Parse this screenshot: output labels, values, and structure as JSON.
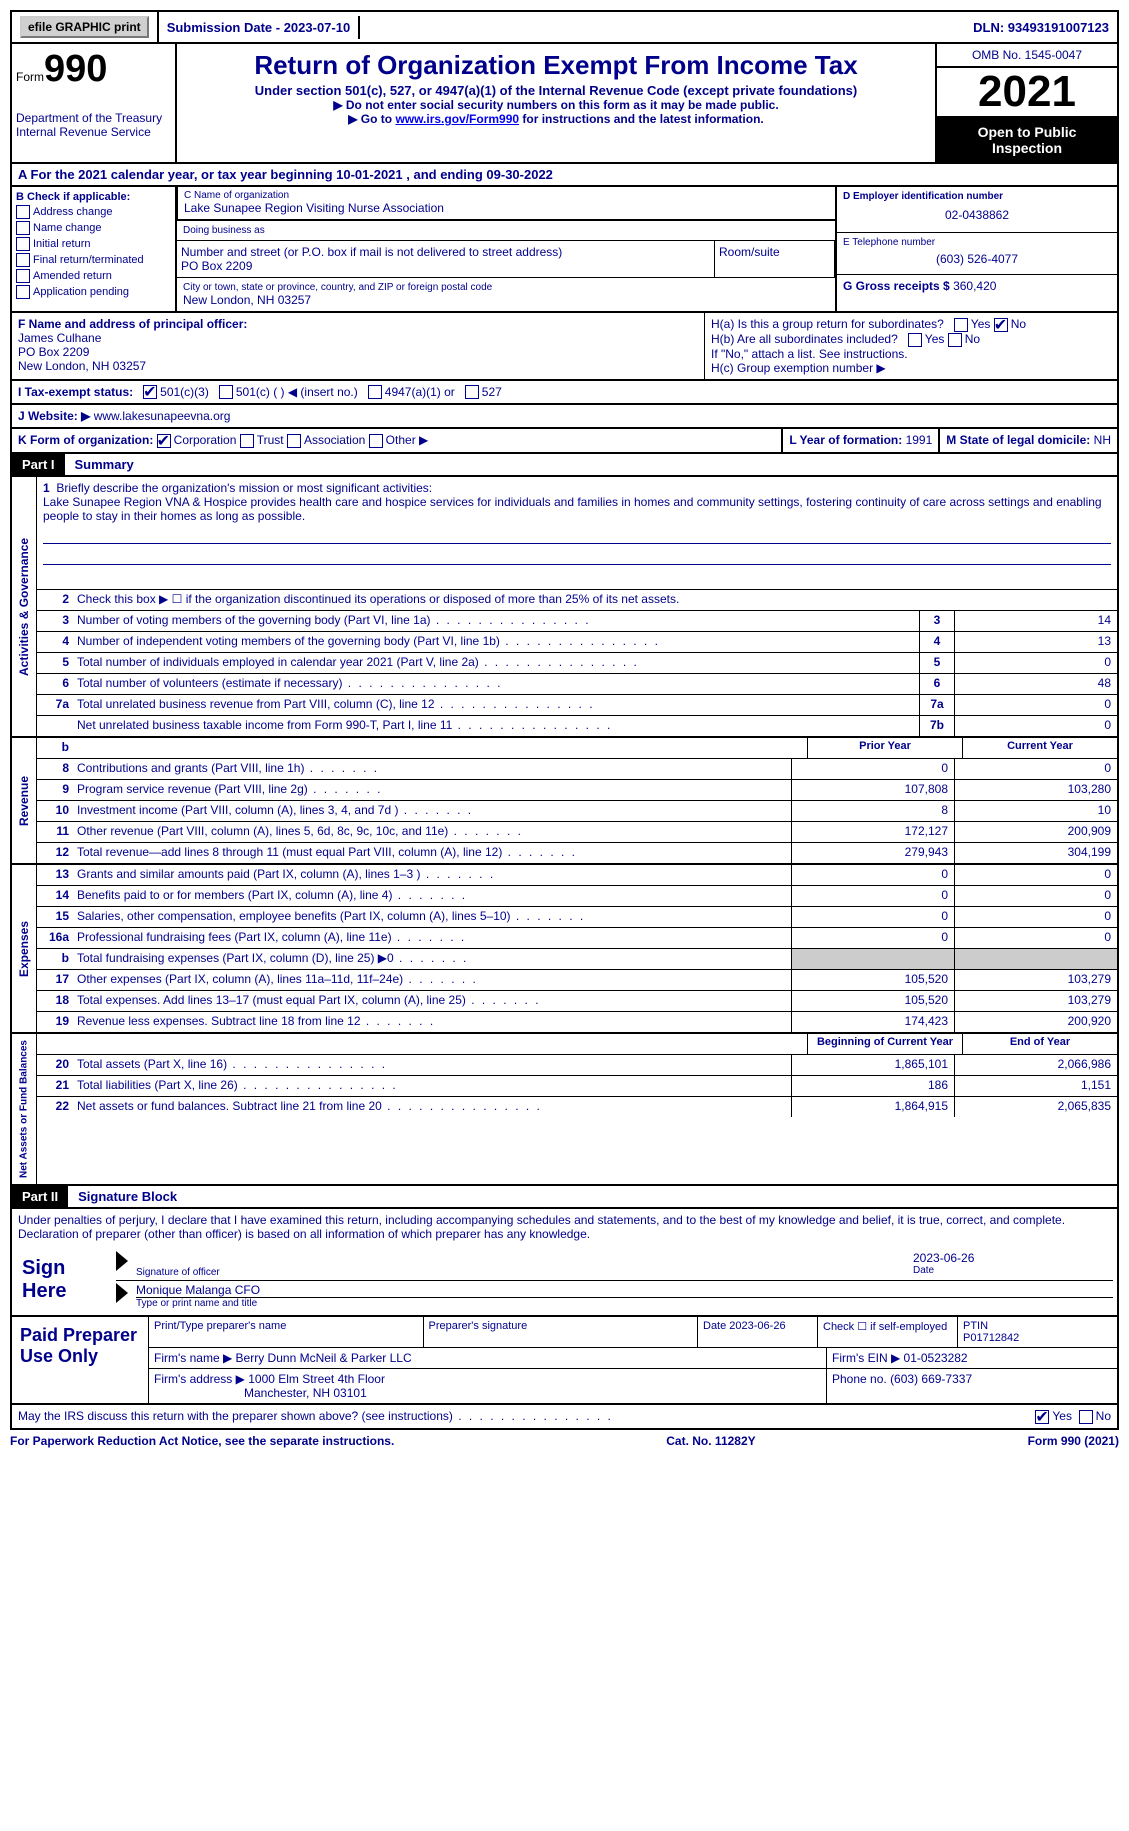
{
  "top_bar": {
    "efile_btn": "efile GRAPHIC print",
    "submission": "Submission Date - 2023-07-10",
    "dln": "DLN: 93493191007123"
  },
  "header": {
    "form_label": "Form",
    "form_num": "990",
    "dept": "Department of the Treasury Internal Revenue Service",
    "title": "Return of Organization Exempt From Income Tax",
    "subtitle": "Under section 501(c), 527, or 4947(a)(1) of the Internal Revenue Code (except private foundations)",
    "note1": "▶ Do not enter social security numbers on this form as it may be made public.",
    "note2_pre": "▶ Go to ",
    "note2_link": "www.irs.gov/Form990",
    "note2_post": " for instructions and the latest information.",
    "omb": "OMB No. 1545-0047",
    "year": "2021",
    "inspection": "Open to Public Inspection"
  },
  "row_a": "A For the 2021 calendar year, or tax year beginning 10-01-2021   , and ending 09-30-2022",
  "section_b": {
    "header": "B Check if applicable:",
    "options": [
      "Address change",
      "Name change",
      "Initial return",
      "Final return/terminated",
      "Amended return",
      "Application pending"
    ]
  },
  "section_c": {
    "name_label": "C Name of organization",
    "name": "Lake Sunapee Region Visiting Nurse Association",
    "dba_label": "Doing business as",
    "street_label": "Number and street (or P.O. box if mail is not delivered to street address)",
    "street": "PO Box 2209",
    "room_label": "Room/suite",
    "city_label": "City or town, state or province, country, and ZIP or foreign postal code",
    "city": "New London, NH  03257"
  },
  "section_d": {
    "ein_label": "D Employer identification number",
    "ein": "02-0438862",
    "tel_label": "E Telephone number",
    "tel": "(603) 526-4077",
    "gross_label": "G Gross receipts $",
    "gross": "360,420"
  },
  "officer": {
    "label": "F Name and address of principal officer:",
    "name": "James Culhane",
    "addr1": "PO Box 2209",
    "addr2": "New London, NH  03257"
  },
  "section_h": {
    "ha": "H(a)  Is this a group return for subordinates?",
    "hb": "H(b)  Are all subordinates included?",
    "hb_note": "If \"No,\" attach a list. See instructions.",
    "hc": "H(c)  Group exemption number ▶"
  },
  "tax_status": {
    "label": "I  Tax-exempt status:",
    "opt1": "501(c)(3)",
    "opt2": "501(c) (  ) ◀ (insert no.)",
    "opt3": "4947(a)(1) or",
    "opt4": "527"
  },
  "website": {
    "label": "J Website: ▶",
    "url": "www.lakesunapeevna.org"
  },
  "form_org": {
    "label": "K Form of organization:",
    "opts": [
      "Corporation",
      "Trust",
      "Association",
      "Other ▶"
    ]
  },
  "l_year": {
    "label": "L Year of formation:",
    "val": "1991"
  },
  "m_state": {
    "label": "M State of legal domicile:",
    "val": "NH"
  },
  "part1": {
    "header": "Part I",
    "title": "Summary",
    "mission_label": "Briefly describe the organization's mission or most significant activities:",
    "mission": "Lake Sunapee Region VNA & Hospice provides health care and hospice services for individuals and families in homes and community settings, fostering continuity of care across settings and enabling people to stay in their homes as long as possible.",
    "line2": "Check this box ▶ ☐ if the organization discontinued its operations or disposed of more than 25% of its net assets.",
    "vert_labels": [
      "Activities & Governance",
      "Revenue",
      "Expenses",
      "Net Assets or Fund Balances"
    ],
    "gov_rows": [
      {
        "n": "3",
        "d": "Number of voting members of the governing body (Part VI, line 1a)",
        "b": "3",
        "v": "14"
      },
      {
        "n": "4",
        "d": "Number of independent voting members of the governing body (Part VI, line 1b)",
        "b": "4",
        "v": "13"
      },
      {
        "n": "5",
        "d": "Total number of individuals employed in calendar year 2021 (Part V, line 2a)",
        "b": "5",
        "v": "0"
      },
      {
        "n": "6",
        "d": "Total number of volunteers (estimate if necessary)",
        "b": "6",
        "v": "48"
      },
      {
        "n": "7a",
        "d": "Total unrelated business revenue from Part VIII, column (C), line 12",
        "b": "7a",
        "v": "0"
      },
      {
        "n": "",
        "d": "Net unrelated business taxable income from Form 990-T, Part I, line 11",
        "b": "7b",
        "v": "0"
      }
    ],
    "col_headers": {
      "prior": "Prior Year",
      "current": "Current Year"
    },
    "rev_rows": [
      {
        "n": "8",
        "d": "Contributions and grants (Part VIII, line 1h)",
        "p": "0",
        "c": "0"
      },
      {
        "n": "9",
        "d": "Program service revenue (Part VIII, line 2g)",
        "p": "107,808",
        "c": "103,280"
      },
      {
        "n": "10",
        "d": "Investment income (Part VIII, column (A), lines 3, 4, and 7d )",
        "p": "8",
        "c": "10"
      },
      {
        "n": "11",
        "d": "Other revenue (Part VIII, column (A), lines 5, 6d, 8c, 9c, 10c, and 11e)",
        "p": "172,127",
        "c": "200,909"
      },
      {
        "n": "12",
        "d": "Total revenue—add lines 8 through 11 (must equal Part VIII, column (A), line 12)",
        "p": "279,943",
        "c": "304,199"
      }
    ],
    "exp_rows": [
      {
        "n": "13",
        "d": "Grants and similar amounts paid (Part IX, column (A), lines 1–3 )",
        "p": "0",
        "c": "0"
      },
      {
        "n": "14",
        "d": "Benefits paid to or for members (Part IX, column (A), line 4)",
        "p": "0",
        "c": "0"
      },
      {
        "n": "15",
        "d": "Salaries, other compensation, employee benefits (Part IX, column (A), lines 5–10)",
        "p": "0",
        "c": "0"
      },
      {
        "n": "16a",
        "d": "Professional fundraising fees (Part IX, column (A), line 11e)",
        "p": "0",
        "c": "0"
      },
      {
        "n": "b",
        "d": "Total fundraising expenses (Part IX, column (D), line 25) ▶0",
        "p": "shaded",
        "c": "shaded"
      },
      {
        "n": "17",
        "d": "Other expenses (Part IX, column (A), lines 11a–11d, 11f–24e)",
        "p": "105,520",
        "c": "103,279"
      },
      {
        "n": "18",
        "d": "Total expenses. Add lines 13–17 (must equal Part IX, column (A), line 25)",
        "p": "105,520",
        "c": "103,279"
      },
      {
        "n": "19",
        "d": "Revenue less expenses. Subtract line 18 from line 12",
        "p": "174,423",
        "c": "200,920"
      }
    ],
    "net_headers": {
      "beg": "Beginning of Current Year",
      "end": "End of Year"
    },
    "net_rows": [
      {
        "n": "20",
        "d": "Total assets (Part X, line 16)",
        "p": "1,865,101",
        "c": "2,066,986"
      },
      {
        "n": "21",
        "d": "Total liabilities (Part X, line 26)",
        "p": "186",
        "c": "1,151"
      },
      {
        "n": "22",
        "d": "Net assets or fund balances. Subtract line 21 from line 20",
        "p": "1,864,915",
        "c": "2,065,835"
      }
    ]
  },
  "part2": {
    "header": "Part II",
    "title": "Signature Block",
    "penalty": "Under penalties of perjury, I declare that I have examined this return, including accompanying schedules and statements, and to the best of my knowledge and belief, it is true, correct, and complete. Declaration of preparer (other than officer) is based on all information of which preparer has any knowledge.",
    "sign_here": "Sign Here",
    "sig_officer": "Signature of officer",
    "sig_date": "2023-06-26",
    "date_label": "Date",
    "officer_name": "Monique Malanga CFO",
    "type_label": "Type or print name and title",
    "paid_label": "Paid Preparer Use Only",
    "prep_headers": {
      "name": "Print/Type preparer's name",
      "sig": "Preparer's signature",
      "date": "Date 2023-06-26",
      "check": "Check ☐ if self-employed",
      "ptin_label": "PTIN",
      "ptin": "P01712842"
    },
    "firm_name_label": "Firm's name    ▶",
    "firm_name": "Berry Dunn McNeil & Parker LLC",
    "firm_ein_label": "Firm's EIN ▶",
    "firm_ein": "01-0523282",
    "firm_addr_label": "Firm's address ▶",
    "firm_addr": "1000 Elm Street 4th Floor",
    "firm_city": "Manchester, NH  03101",
    "phone_label": "Phone no.",
    "phone": "(603) 669-7337",
    "discuss": "May the IRS discuss this return with the preparer shown above? (see instructions)"
  },
  "footer": {
    "left": "For Paperwork Reduction Act Notice, see the separate instructions.",
    "mid": "Cat. No. 11282Y",
    "right": "Form 990 (2021)"
  }
}
